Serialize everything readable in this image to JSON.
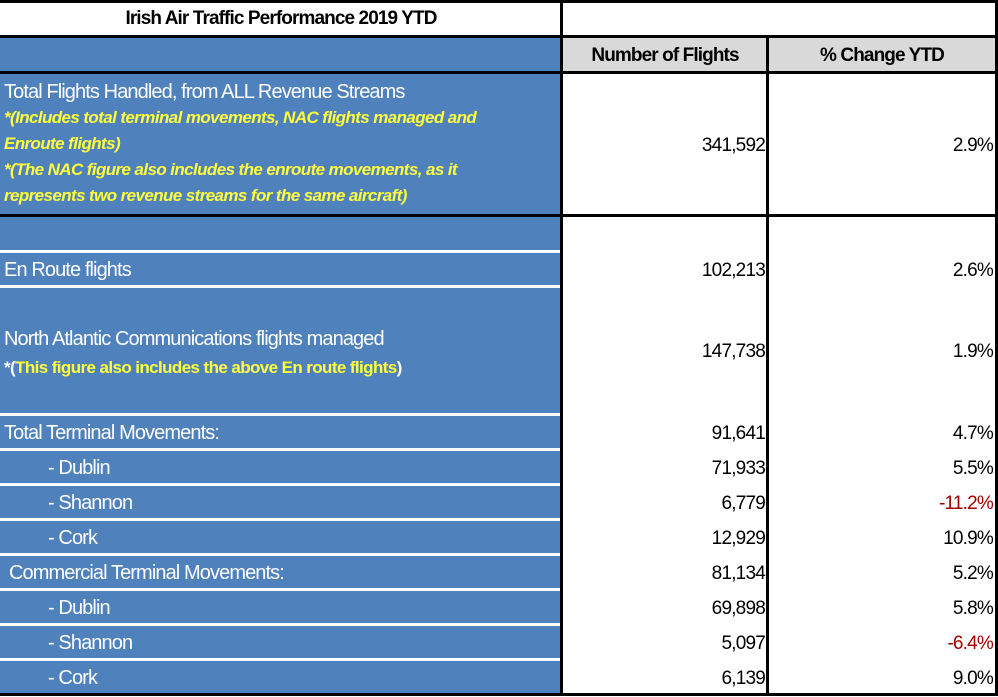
{
  "title": "Irish Air Traffic Performance 2019 YTD",
  "columns": {
    "flights": "Number of Flights",
    "change": "% Change YTD"
  },
  "total_all": {
    "label": "Total Flights Handled, from ALL Revenue Streams",
    "note1_line1": "*(Includes total terminal movements, NAC flights managed and",
    "note1_line2": "Enroute flights)",
    "note2_line1": "*(The NAC figure also includes the enroute movements, as it",
    "note2_line2": "represents two revenue streams for the same aircraft)",
    "flights": "341,592",
    "change": "2.9%"
  },
  "en_route": {
    "label": "En Route flights",
    "flights": "102,213",
    "change": "2.6%"
  },
  "nac": {
    "label": "North Atlantic Communications flights managed",
    "note_prefix": "*(",
    "note": "This figure also includes the above En route flights",
    "note_suffix": ")",
    "flights": "147,738",
    "change": "1.9%"
  },
  "rows": [
    {
      "label": "Total Terminal Movements:",
      "flights": "91,641",
      "change": "4.7%"
    },
    {
      "label": "- Dublin",
      "flights": "71,933",
      "change": "5.5%"
    },
    {
      "label": "- Shannon",
      "flights": "6,779",
      "change": "-11.2%"
    },
    {
      "label": "- Cork",
      "flights": "12,929",
      "change": "10.9%"
    },
    {
      "label": "Commercial Terminal Movements:",
      "flights": "81,134",
      "change": "5.2%"
    },
    {
      "label": "- Dublin",
      "flights": "69,898",
      "change": "5.8%"
    },
    {
      "label": "- Shannon",
      "flights": "5,097",
      "change": "-6.4%"
    },
    {
      "label": "- Cork",
      "flights": "6,139",
      "change": "9.0%"
    }
  ],
  "colors": {
    "blue": "#4f81bd",
    "note": "#ffff3c",
    "negative": "#a00000"
  }
}
